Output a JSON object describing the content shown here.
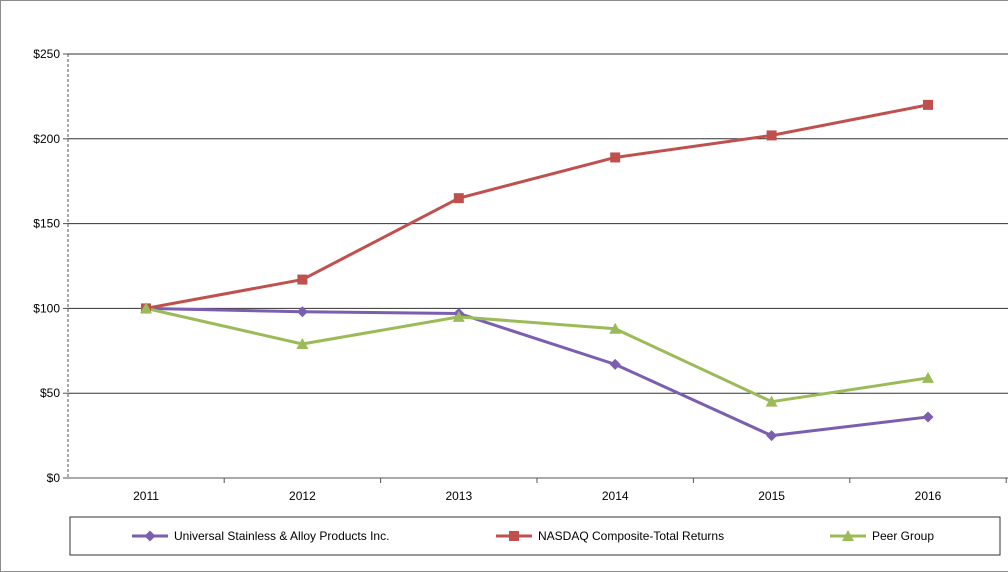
{
  "chart_data": {
    "type": "line",
    "title": "",
    "xlabel": "",
    "ylabel": "",
    "categories": [
      "2011",
      "2012",
      "2013",
      "2014",
      "2015",
      "2016"
    ],
    "ylim": [
      0,
      250
    ],
    "y_ticks": [
      {
        "value": 0,
        "label": "$0"
      },
      {
        "value": 50,
        "label": "$50"
      },
      {
        "value": 100,
        "label": "$100"
      },
      {
        "value": 150,
        "label": "$150"
      },
      {
        "value": 200,
        "label": "$200"
      },
      {
        "value": 250,
        "label": "$250"
      }
    ],
    "grid": true,
    "legend_position": "bottom",
    "series": [
      {
        "name": "Universal Stainless & Alloy Products Inc.",
        "color": "#7b5eb0",
        "marker": "diamond",
        "values": [
          100,
          98,
          97,
          67,
          25,
          36
        ]
      },
      {
        "name": "NASDAQ Composite-Total Returns",
        "color": "#c0504d",
        "marker": "square",
        "values": [
          100,
          117,
          165,
          189,
          202,
          220
        ]
      },
      {
        "name": "Peer Group",
        "color": "#9bbb59",
        "marker": "triangle",
        "values": [
          100,
          79,
          95,
          88,
          45,
          59
        ]
      }
    ]
  }
}
